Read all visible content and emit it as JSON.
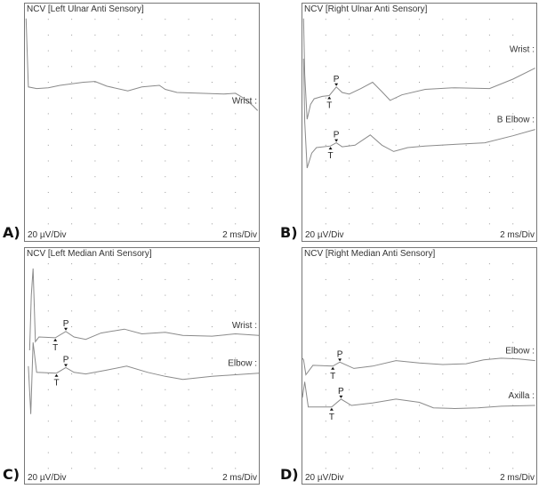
{
  "colors": {
    "trace": "#8a8a8a",
    "grid_dot": "#999999",
    "border": "#777777"
  },
  "chart_data": [
    {
      "type": "line",
      "panel_label": "A)",
      "title": "NCV [Left Ulnar Anti Sensory]",
      "y_scale_label": "20 µV/Div",
      "x_scale_label": "2 ms/Div",
      "xlim": [
        0,
        20
      ],
      "ylim": [
        -300,
        0
      ],
      "grid": "dots",
      "series": [
        {
          "name": "Wrist :",
          "points": [
            [
              0.1,
              -19
            ],
            [
              0.3,
              -106
            ],
            [
              1,
              -108
            ],
            [
              2,
              -107
            ],
            [
              3,
              -104
            ],
            [
              4,
              -102
            ],
            [
              5,
              -100
            ],
            [
              6,
              -99
            ],
            [
              7,
              -105
            ],
            [
              8.8,
              -111
            ],
            [
              10,
              -106
            ],
            [
              11.5,
              -104
            ],
            [
              12,
              -109
            ],
            [
              13,
              -113
            ],
            [
              15,
              -114
            ],
            [
              17,
              -115
            ],
            [
              18,
              -114
            ],
            [
              18.8,
              -121
            ],
            [
              19.5,
              -130
            ],
            [
              19.9,
              -136
            ]
          ],
          "markers": []
        }
      ]
    },
    {
      "type": "line",
      "panel_label": "B)",
      "title": "NCV [Right Ulnar Anti Sensory]",
      "y_scale_label": "20 µV/Div",
      "x_scale_label": "2 ms/Div",
      "xlim": [
        0,
        20
      ],
      "ylim": [
        -300,
        0
      ],
      "grid": "dots",
      "series": [
        {
          "name": "Wrist :",
          "points": [
            [
              0.1,
              -19
            ],
            [
              0.2,
              -90
            ],
            [
              0.4,
              -147
            ],
            [
              0.7,
              -128
            ],
            [
              1,
              -121
            ],
            [
              1.7,
              -118
            ],
            [
              2.3,
              -117
            ],
            [
              2.9,
              -106
            ],
            [
              3.4,
              -113
            ],
            [
              4,
              -115
            ],
            [
              5,
              -108
            ],
            [
              6,
              -100
            ],
            [
              6.8,
              -112
            ],
            [
              7.5,
              -123
            ],
            [
              8.5,
              -116
            ],
            [
              10.5,
              -109
            ],
            [
              13,
              -107
            ],
            [
              16,
              -108
            ],
            [
              18,
              -96
            ],
            [
              19.9,
              -82
            ]
          ],
          "markers": [
            {
              "label": "T",
              "x": 2.3
            },
            {
              "label": "P",
              "x": 2.9
            }
          ]
        },
        {
          "name": "B Elbow :",
          "points": [
            [
              0.1,
              -70
            ],
            [
              0.2,
              -150
            ],
            [
              0.4,
              -209
            ],
            [
              0.8,
              -190
            ],
            [
              1.2,
              -183
            ],
            [
              2.4,
              -181
            ],
            [
              2.9,
              -177
            ],
            [
              3.4,
              -182
            ],
            [
              4.5,
              -180
            ],
            [
              5.8,
              -167
            ],
            [
              6.8,
              -180
            ],
            [
              7.8,
              -188
            ],
            [
              9,
              -183
            ],
            [
              10.5,
              -181
            ],
            [
              13,
              -179
            ],
            [
              15.6,
              -177
            ],
            [
              18,
              -168
            ],
            [
              19.9,
              -160
            ]
          ],
          "markers": [
            {
              "label": "T",
              "x": 2.4
            },
            {
              "label": "P",
              "x": 2.9
            }
          ]
        }
      ]
    },
    {
      "type": "line",
      "panel_label": "C)",
      "title": "NCV [Left Median Anti Sensory]",
      "y_scale_label": "20 µV/Div",
      "x_scale_label": "2 ms/Div",
      "xlim": [
        0,
        20
      ],
      "ylim": [
        -300,
        0
      ],
      "grid": "dots",
      "series": [
        {
          "name": "Wrist :",
          "points": [
            [
              0.4,
              -130
            ],
            [
              0.55,
              -60
            ],
            [
              0.7,
              -26
            ],
            [
              0.9,
              -119
            ],
            [
              1.2,
              -113
            ],
            [
              2.6,
              -114
            ],
            [
              3.5,
              -106
            ],
            [
              4.2,
              -113
            ],
            [
              5.2,
              -116
            ],
            [
              6.5,
              -108
            ],
            [
              8.5,
              -103
            ],
            [
              10,
              -109
            ],
            [
              12,
              -107
            ],
            [
              13.5,
              -111
            ],
            [
              16,
              -112
            ],
            [
              18,
              -109
            ],
            [
              20,
              -111
            ]
          ],
          "markers": [
            {
              "label": "T",
              "x": 2.6
            },
            {
              "label": "P",
              "x": 3.5
            }
          ]
        },
        {
          "name": "Elbow :",
          "points": [
            [
              0.3,
              -150
            ],
            [
              0.5,
              -211
            ],
            [
              0.7,
              -120
            ],
            [
              1,
              -158
            ],
            [
              2.7,
              -159
            ],
            [
              3.5,
              -152
            ],
            [
              4.2,
              -158
            ],
            [
              5.2,
              -160
            ],
            [
              7,
              -155
            ],
            [
              8.7,
              -150
            ],
            [
              10.5,
              -158
            ],
            [
              12,
              -163
            ],
            [
              13.5,
              -167
            ],
            [
              16,
              -163
            ],
            [
              18,
              -161
            ],
            [
              20,
              -159
            ]
          ],
          "markers": [
            {
              "label": "T",
              "x": 2.7
            },
            {
              "label": "P",
              "x": 3.5
            }
          ]
        }
      ]
    },
    {
      "type": "line",
      "panel_label": "D)",
      "title": "NCV [Right Median Anti Sensory]",
      "y_scale_label": "20 µV/Div",
      "x_scale_label": "2 ms/Div",
      "xlim": [
        0,
        20
      ],
      "ylim": [
        -300,
        0
      ],
      "grid": "dots",
      "series": [
        {
          "name": "Elbow :",
          "points": [
            [
              0,
              -140
            ],
            [
              0.1,
              -142
            ],
            [
              0.3,
              -161
            ],
            [
              0.9,
              -149
            ],
            [
              2.6,
              -150
            ],
            [
              3.2,
              -145
            ],
            [
              4.4,
              -153
            ],
            [
              6,
              -150
            ],
            [
              8,
              -143
            ],
            [
              10,
              -146
            ],
            [
              12,
              -148
            ],
            [
              14,
              -147
            ],
            [
              15.5,
              -142
            ],
            [
              17,
              -140
            ],
            [
              18.5,
              -141
            ],
            [
              19.9,
              -143
            ]
          ],
          "markers": [
            {
              "label": "T",
              "x": 2.6
            },
            {
              "label": "P",
              "x": 3.2
            }
          ]
        },
        {
          "name": "Axilla :",
          "points": [
            [
              0,
              -190
            ],
            [
              0.2,
              -170
            ],
            [
              0.5,
              -202
            ],
            [
              1.2,
              -202
            ],
            [
              2.5,
              -202
            ],
            [
              3.3,
              -192
            ],
            [
              4.2,
              -200
            ],
            [
              6,
              -197
            ],
            [
              8,
              -192
            ],
            [
              10,
              -196
            ],
            [
              11.2,
              -203
            ],
            [
              13,
              -204
            ],
            [
              15,
              -203
            ],
            [
              17,
              -201
            ],
            [
              19.9,
              -200
            ]
          ],
          "markers": [
            {
              "label": "T",
              "x": 2.5
            },
            {
              "label": "P",
              "x": 3.3
            }
          ]
        }
      ]
    }
  ]
}
